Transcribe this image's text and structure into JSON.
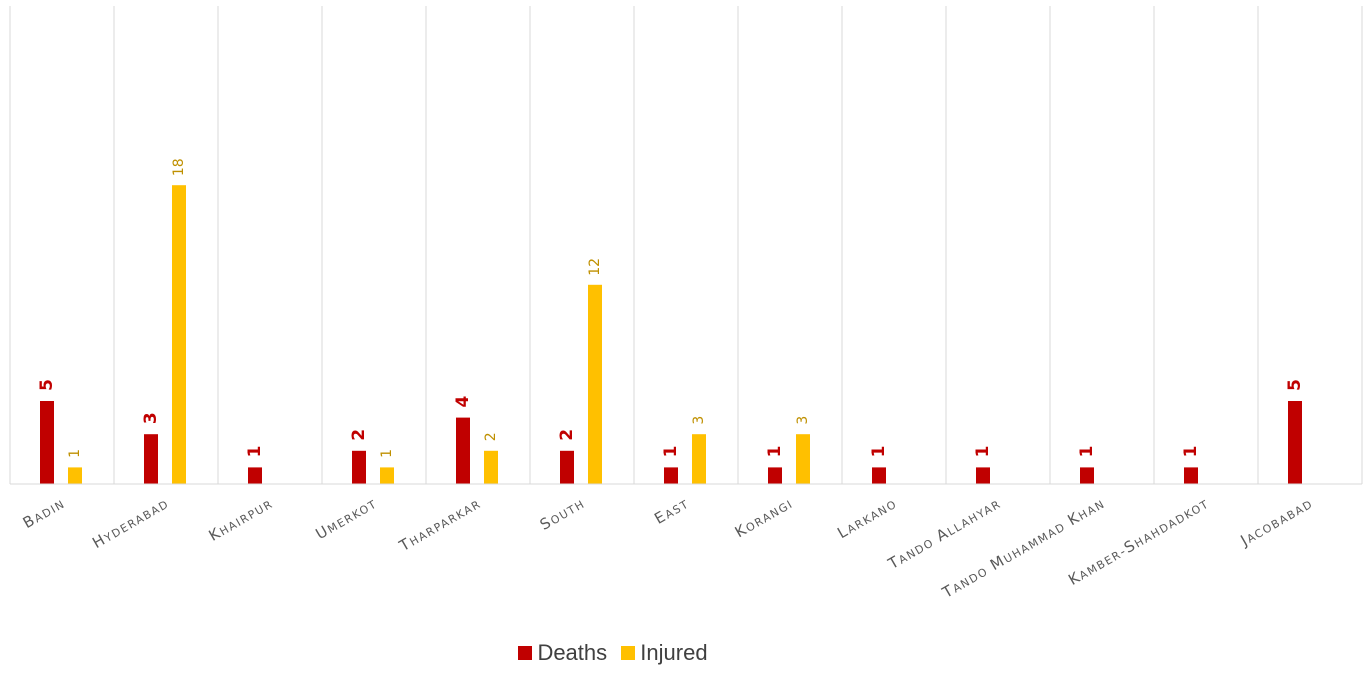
{
  "chart_data": {
    "type": "bar",
    "categories": [
      "Badin",
      "Hyderabad",
      "Khairpur",
      "Umerkot",
      "Tharparkar",
      "South",
      "East",
      "Korangi",
      "Larkano",
      "Tando Allahyar",
      "Tando Muhammad Khan",
      "Kamber-Shahdadkot",
      "Jacobabad"
    ],
    "series": [
      {
        "name": "Deaths",
        "color": "#c00000",
        "values": [
          5,
          3,
          1,
          2,
          4,
          2,
          1,
          1,
          1,
          1,
          1,
          1,
          5
        ]
      },
      {
        "name": "Injured",
        "color": "#ffc000",
        "values": [
          1,
          18,
          null,
          1,
          2,
          12,
          3,
          3,
          null,
          null,
          null,
          null,
          null
        ]
      }
    ],
    "data_labels": {
      "Deaths": [
        "5",
        "3",
        "1",
        "2",
        "4",
        "2",
        "1",
        "1",
        "1",
        "1",
        "1",
        "1",
        "5"
      ],
      "Injured": [
        "1",
        "18",
        "",
        "1",
        "2",
        "12",
        "3",
        "3",
        "",
        "",
        "",
        "",
        ""
      ]
    },
    "grid": "vertical",
    "legend_position": "bottom"
  },
  "legend": {
    "deaths_label": "Deaths",
    "injured_label": "Injured"
  }
}
